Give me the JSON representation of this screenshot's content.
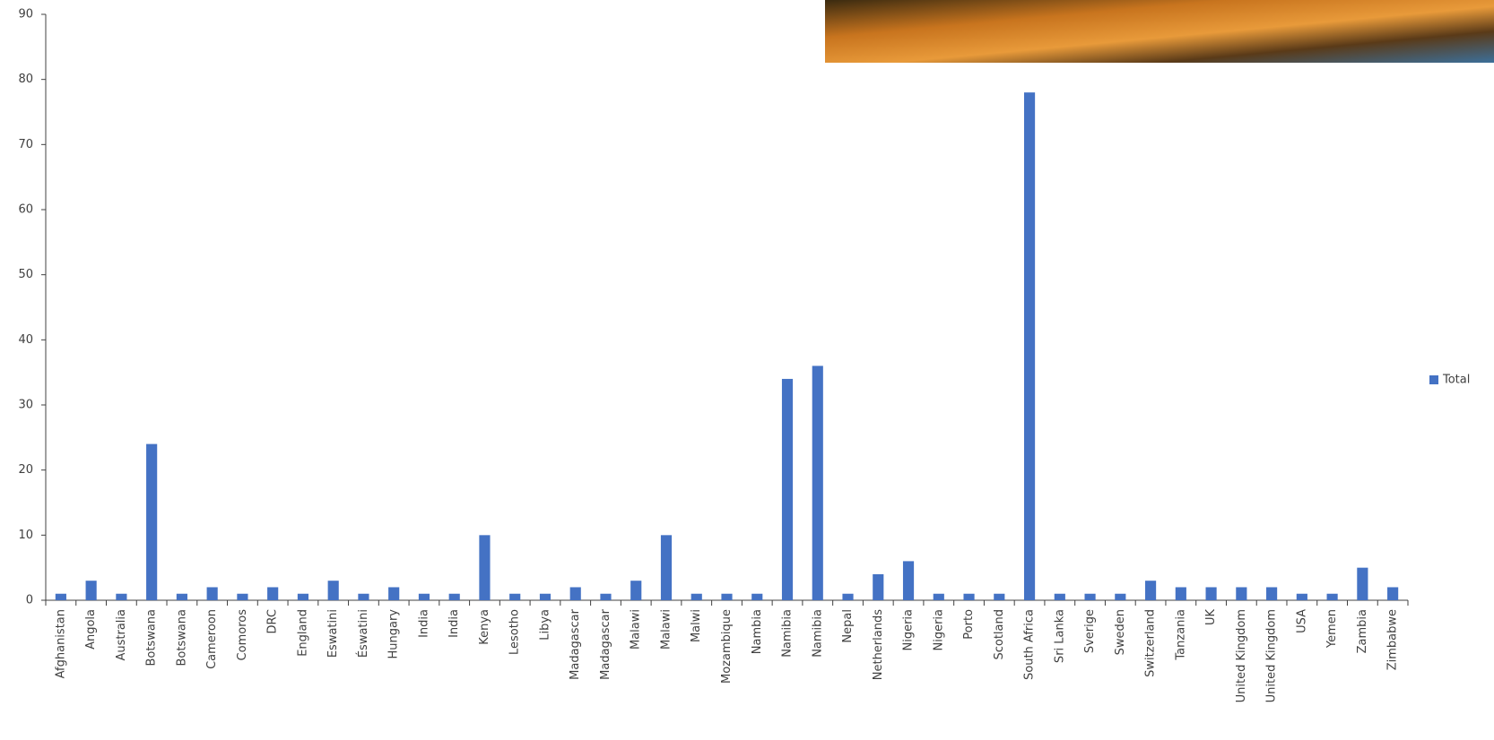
{
  "chart_data": {
    "type": "bar",
    "categories": [
      "Afghanistan",
      "Angola",
      "Australia",
      "Botswana",
      "Botswana",
      "Cameroon",
      "Comoros",
      "DRC",
      "England",
      "Eswatini",
      "Éswatini",
      "Hungary",
      "India",
      "India",
      "Kenya",
      "Lesotho",
      "Libya",
      "Madagascar",
      "Madagascar",
      "Malawi",
      "Malawi",
      "Malwi",
      "Mozambique",
      "Nambia",
      "Namibia",
      "Namibia",
      "Nepal",
      "Netherlands",
      "Nigeria",
      "Nigeria",
      "Porto",
      "Scotland",
      "South Africa",
      "Sri Lanka",
      "Sverige",
      "Sweden",
      "Switzerland",
      "Tanzania",
      "UK",
      "United Kingdom",
      "United Kingdom",
      "USA",
      "Yemen",
      "Zambia",
      "Zimbabwe"
    ],
    "series": [
      {
        "name": "Total",
        "color": "#4472c4",
        "values": [
          1,
          3,
          1,
          24,
          1,
          2,
          1,
          2,
          1,
          3,
          1,
          2,
          1,
          1,
          10,
          1,
          1,
          2,
          1,
          3,
          10,
          1,
          1,
          1,
          34,
          36,
          1,
          4,
          6,
          1,
          1,
          1,
          78,
          1,
          1,
          1,
          3,
          2,
          2,
          2,
          2,
          1,
          1,
          5,
          2
        ]
      }
    ],
    "ylim": [
      0,
      90
    ],
    "yticks": [
      0,
      10,
      20,
      30,
      40,
      50,
      60,
      70,
      80,
      90
    ],
    "legend": "right"
  }
}
